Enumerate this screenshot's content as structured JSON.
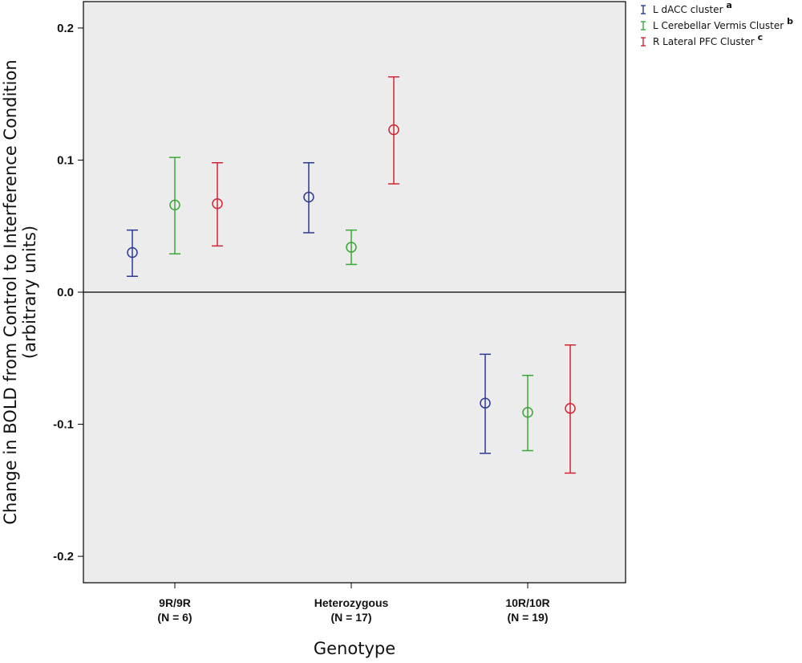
{
  "chart_data": {
    "type": "scatter",
    "title": "",
    "xlabel": "Genotype",
    "ylabel_line1": "Change in BOLD from Control to Interference Condition",
    "ylabel_line2": "(arbitrary units)",
    "ylim": [
      -0.22,
      0.22
    ],
    "yticks": [
      {
        "value": 0.2,
        "label": "0.2"
      },
      {
        "value": 0.1,
        "label": "0.1"
      },
      {
        "value": 0.0,
        "label": "0.0"
      },
      {
        "value": -0.1,
        "label": "-0.1"
      },
      {
        "value": -0.2,
        "label": "-0.2"
      }
    ],
    "grid": false,
    "legend_position": "top-right, outside plot",
    "categories": [
      {
        "name": "9R/9R",
        "n_label": "(N = 6)"
      },
      {
        "name": "Heterozygous",
        "n_label": "(N = 17)"
      },
      {
        "name": "10R/10R",
        "n_label": "(N = 19)"
      }
    ],
    "series": [
      {
        "name": "L dACC cluster",
        "superscript": "a",
        "color": "#2b3a96",
        "means": [
          0.03,
          0.072,
          -0.084
        ],
        "lower": [
          0.012,
          0.045,
          -0.122
        ],
        "upper": [
          0.047,
          0.098,
          -0.047
        ]
      },
      {
        "name": "L Cerebellar Vermis Cluster",
        "superscript": "b",
        "color": "#3aa635",
        "means": [
          0.066,
          0.034,
          -0.091
        ],
        "lower": [
          0.029,
          0.021,
          -0.12
        ],
        "upper": [
          0.102,
          0.047,
          -0.063
        ]
      },
      {
        "name": "R Lateral PFC Cluster",
        "superscript": "c",
        "color": "#d32432",
        "means": [
          0.067,
          0.123,
          -0.088
        ],
        "lower": [
          0.035,
          0.082,
          -0.137
        ],
        "upper": [
          0.098,
          0.163,
          -0.04
        ]
      }
    ]
  },
  "colors": {
    "plot_background": "#ececec",
    "axis_color": "#000000"
  }
}
